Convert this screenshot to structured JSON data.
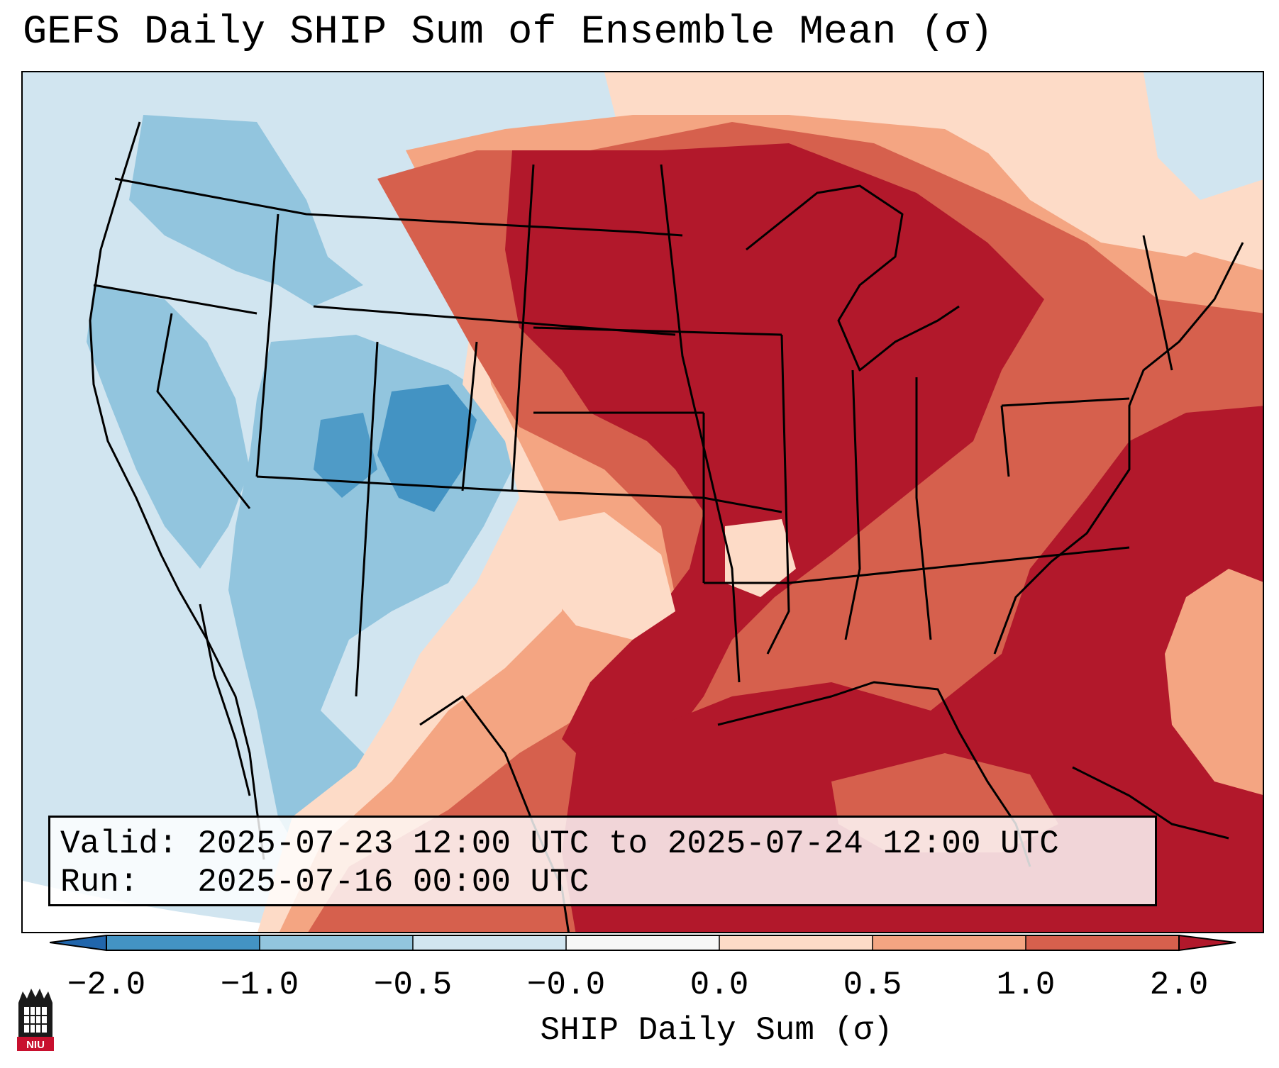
{
  "title": "GEFS Daily SHIP Sum of Ensemble Mean (σ)",
  "info": {
    "valid_label": "Valid:",
    "valid_value": "2025-07-23 12:00 UTC to 2025-07-24 12:00 UTC",
    "run_label": "Run:",
    "run_value": "2025-07-16 00:00 UTC"
  },
  "colorbar": {
    "label": "SHIP Daily Sum (σ)",
    "ticks": [
      "−2.0",
      "−1.0",
      "−0.5",
      "−0.0",
      "0.0",
      "0.5",
      "1.0",
      "2.0"
    ],
    "colors": {
      "extend_low": "#2166ac",
      "bin_neg2_neg1": "#4393c3",
      "bin_neg1_neg05": "#92c5de",
      "bin_neg05_0": "#d1e5f0",
      "bin_zero": "#f7f7f7",
      "bin_0_05": "#fddbc7",
      "bin_05_1": "#f4a582",
      "bin_1_2": "#d6604d",
      "extend_high": "#b2182b"
    }
  },
  "logo": {
    "text": "NIU",
    "name": "niu-logo"
  }
}
